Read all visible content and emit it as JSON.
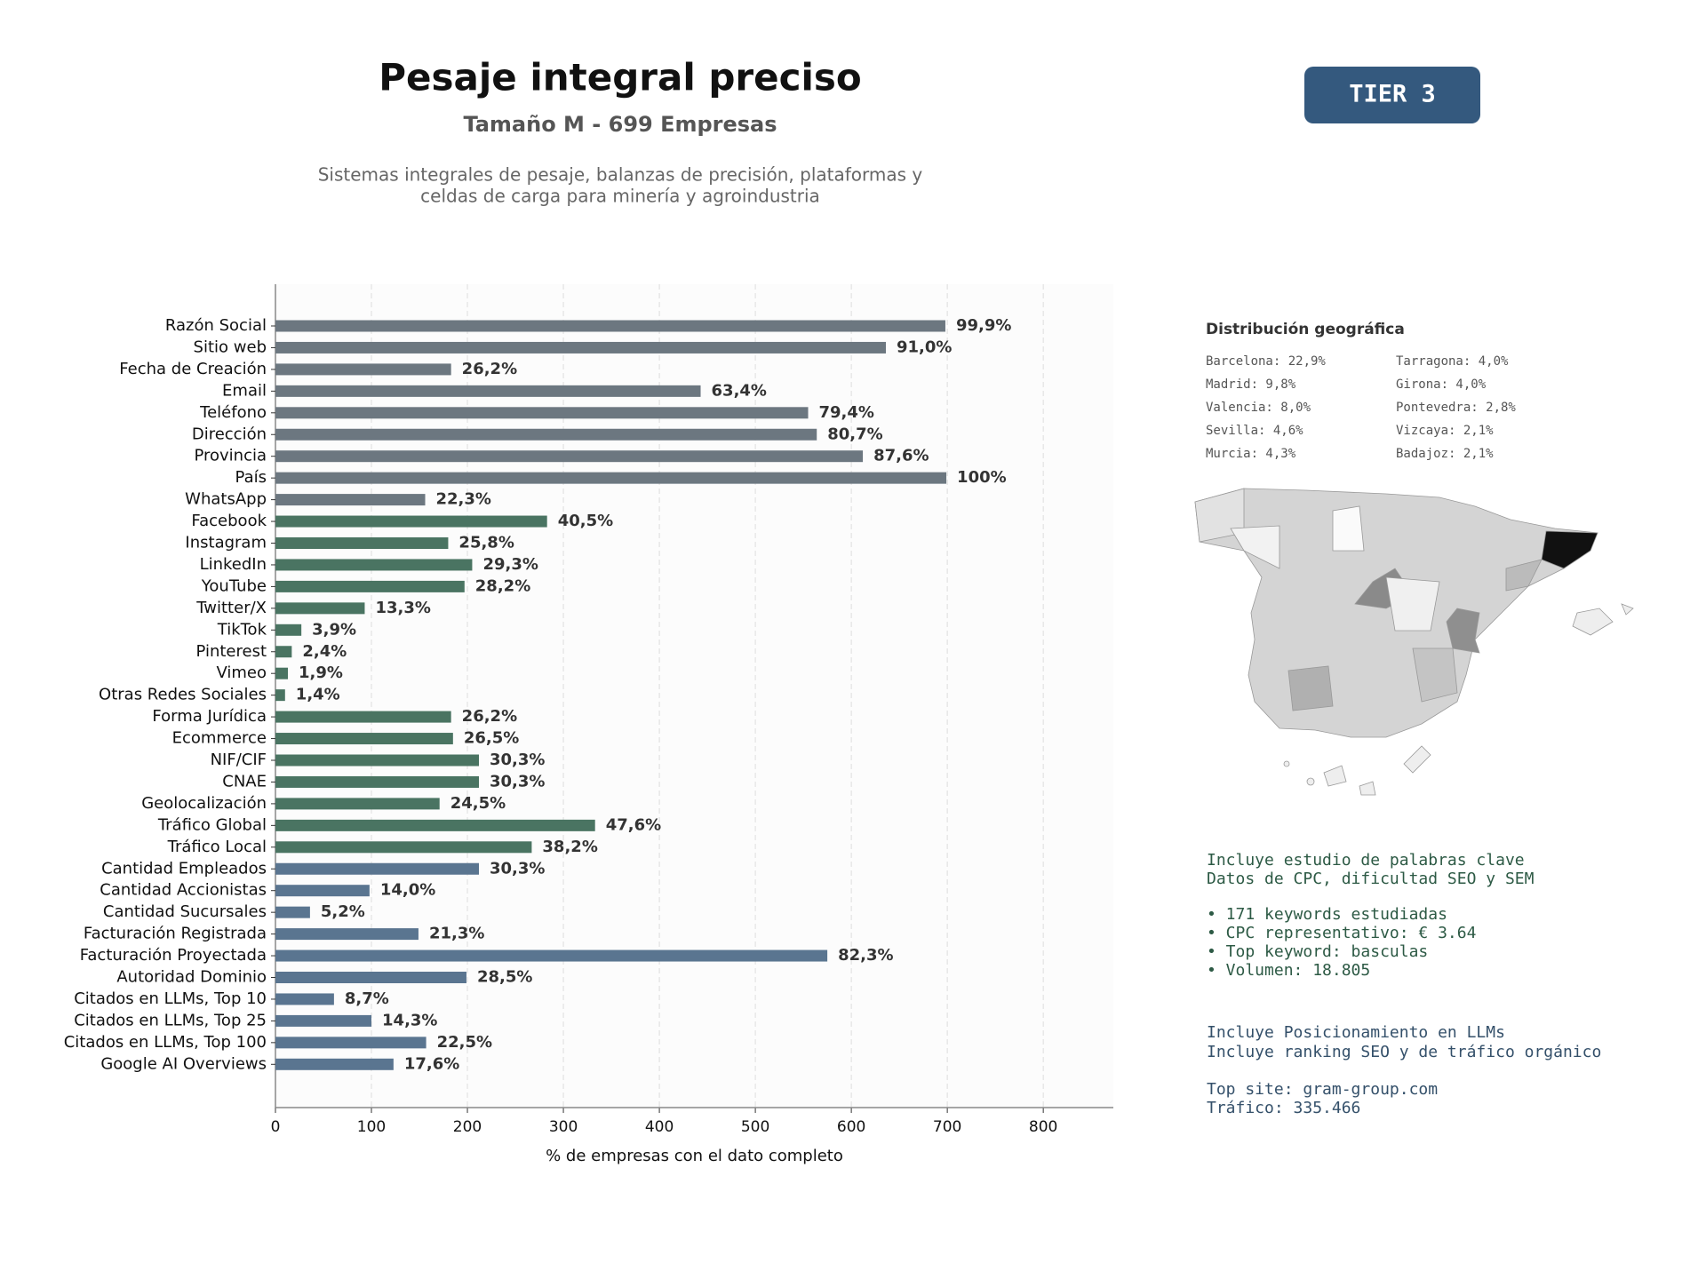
{
  "chart_data": {
    "type": "bar",
    "orientation": "horizontal",
    "title": "Pesaje integral preciso",
    "subtitle": "Tamaño M - 699 Empresas",
    "description": [
      "Sistemas integrales de pesaje, balanzas de precisión, plataformas y",
      "celdas de carga para minería y agroindustria"
    ],
    "x_label": "% de empresas con el dato completo",
    "categories": [
      "Razón Social",
      "Sitio web",
      "Fecha de Creación",
      "Email",
      "Teléfono",
      "Dirección",
      "Provincia",
      "País",
      "WhatsApp",
      "Facebook",
      "Instagram",
      "LinkedIn",
      "YouTube",
      "Twitter/X",
      "TikTok",
      "Pinterest",
      "Vimeo",
      "Otras Redes Sociales",
      "Forma Jurídica",
      "Ecommerce",
      "NIF/CIF",
      "CNAE",
      "Geolocalización",
      "Tráfico Global",
      "Tráfico Local",
      "Cantidad Empleados",
      "Cantidad Accionistas",
      "Cantidad Sucursales",
      "Facturación Registrada",
      "Facturación Proyectada",
      "Autoridad Dominio",
      "Citados en LLMs, Top 10",
      "Citados en LLMs, Top 25",
      "Citados en LLMs, Top 100",
      "Google AI Overviews"
    ],
    "values": [
      698,
      636,
      183,
      443,
      555,
      564,
      612,
      699,
      156,
      283,
      180,
      205,
      197,
      93,
      27,
      17,
      13,
      10,
      183,
      185,
      212,
      212,
      171,
      333,
      267,
      212,
      98,
      36,
      149,
      575,
      199,
      61,
      100,
      157,
      123
    ],
    "value_labels": [
      "99,9%",
      "91,0%",
      "26,2%",
      "63,4%",
      "79,4%",
      "80,7%",
      "87,6%",
      "100%",
      "22,3%",
      "40,5%",
      "25,8%",
      "29,3%",
      "28,2%",
      "13,3%",
      "3,9%",
      "2,4%",
      "1,9%",
      "1,4%",
      "26,2%",
      "26,5%",
      "30,3%",
      "30,3%",
      "24,5%",
      "47,6%",
      "38,2%",
      "30,3%",
      "14,0%",
      "5,2%",
      "21,3%",
      "82,3%",
      "28,5%",
      "8,7%",
      "14,3%",
      "22,5%",
      "17,6%"
    ],
    "colors": [
      "#6c7780",
      "#6c7780",
      "#6c7780",
      "#6c7780",
      "#6c7780",
      "#6c7780",
      "#6c7780",
      "#6c7780",
      "#6c7780",
      "#4a7462",
      "#4a7462",
      "#4a7462",
      "#4a7462",
      "#4a7462",
      "#4a7462",
      "#4a7462",
      "#4a7462",
      "#4a7462",
      "#4a7462",
      "#4a7462",
      "#4a7462",
      "#4a7462",
      "#4a7462",
      "#4a7462",
      "#4a7462",
      "#5a7590",
      "#5a7590",
      "#5a7590",
      "#5a7590",
      "#5a7590",
      "#5a7590",
      "#5a7590",
      "#5a7590",
      "#5a7590",
      "#5a7590"
    ],
    "xlim": [
      0,
      873
    ],
    "xticks": [
      0,
      100,
      200,
      300,
      400,
      500,
      600,
      700,
      800
    ],
    "grid": true
  },
  "badge": "TIER 3",
  "geo": {
    "title": "Distribución geográfica",
    "items": [
      "Barcelona: 22,9%",
      "Madrid: 9,8%",
      "Valencia: 8,0%",
      "Sevilla: 4,6%",
      "Murcia: 4,3%",
      "Tarragona: 4,0%",
      "Girona: 4,0%",
      "Pontevedra: 2,8%",
      "Vizcaya: 2,1%",
      "Badajoz: 2,1%"
    ]
  },
  "notes": {
    "keywords": [
      "Incluye estudio de palabras clave",
      "Datos de CPC, dificultad SEO y SEM",
      "• 171 keywords estudiadas",
      "• CPC representativo: € 3.64",
      "• Top keyword: basculas",
      "• Volumen: 18.805"
    ],
    "llm": [
      "Incluye Posicionamiento en LLMs",
      "Incluye ranking SEO y de tráfico orgánico",
      "Top site: gram-group.com",
      "Tráfico: 335.466"
    ]
  }
}
